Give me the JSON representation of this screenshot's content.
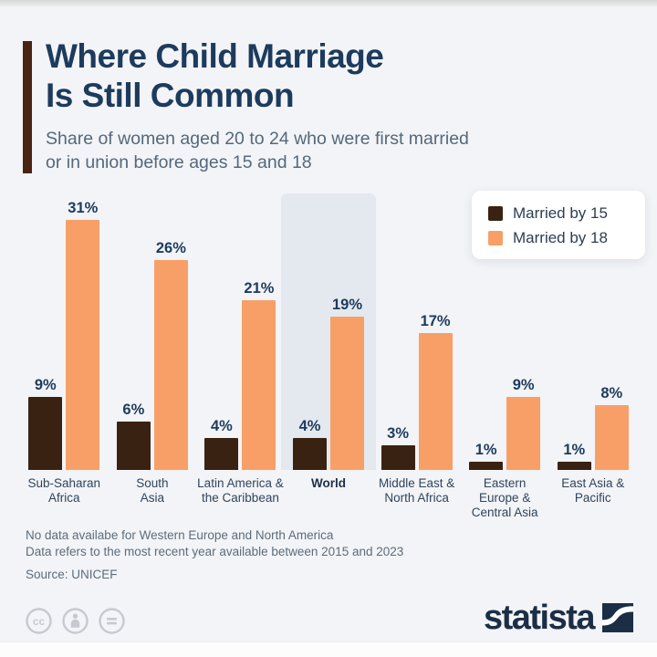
{
  "colors": {
    "background": "#f2f4f7",
    "accent_bar": "#4a2413",
    "title": "#1d3b5d",
    "subtitle": "#55687b",
    "category_label": "#31445a",
    "footnote": "#5d6c7b",
    "highlight_band": "#e4e8ef",
    "married_by_15": "#3a2212",
    "married_by_18": "#f89f68",
    "logo": "#1b2e45",
    "license_icon": "#c6cad0"
  },
  "header": {
    "title_line1": "Where Child Marriage",
    "title_line2": "Is Still Common",
    "subtitle_line1": "Share of women aged 20 to 24 who were first married",
    "subtitle_line2": "or in union before ages 15 and 18"
  },
  "chart_data": {
    "type": "bar",
    "categories": [
      "Sub-Saharan Africa",
      "South Asia",
      "Latin America & the Caribbean",
      "World",
      "Middle East & North Africa",
      "Eastern Europe & Central Asia",
      "East Asia & Pacific"
    ],
    "category_label_lines": [
      [
        "Sub-Saharan",
        "Africa"
      ],
      [
        "South",
        "Asia"
      ],
      [
        "Latin America &",
        "the Caribbean"
      ],
      [
        "World"
      ],
      [
        "Middle East &",
        "North Africa"
      ],
      [
        "Eastern",
        "Europe &",
        "Central Asia"
      ],
      [
        "East Asia &",
        "Pacific"
      ]
    ],
    "series": [
      {
        "name": "Married by 15",
        "values": [
          9,
          6,
          4,
          4,
          3,
          1,
          1
        ],
        "color": "#3a2212"
      },
      {
        "name": "Married by 18",
        "values": [
          31,
          26,
          21,
          19,
          17,
          9,
          8
        ],
        "color": "#f89f68"
      }
    ],
    "unit": "%",
    "highlighted_category": "World",
    "value_labels": true,
    "ylim": [
      0,
      31
    ],
    "grid": false,
    "legend_position": "top-right"
  },
  "footnotes": {
    "line1": "No data availabe for Western Europe and North America",
    "line2": "Data refers to the most recent year available between 2015 and 2023",
    "source": "Source: UNICEF"
  },
  "branding": {
    "logo_text": "statista",
    "license_icons": [
      "cc-icon",
      "attribution-icon",
      "no-derivatives-icon"
    ]
  }
}
